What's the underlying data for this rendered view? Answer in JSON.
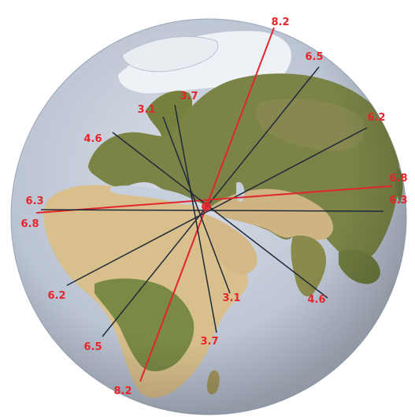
{
  "map": {
    "projection": "orthographic-globe",
    "center_region": "Middle East",
    "colors": {
      "ocean": "#c6cfdc",
      "land_green": "#6c7a3c",
      "land_desert": "#d8bf8c",
      "ice": "#eef1f6",
      "line_red": "#e0262b",
      "line_dark": "#1e2a3a",
      "label": "#e8232a"
    }
  },
  "segments": [
    {
      "id": "s1",
      "value": 8.2,
      "color": "red",
      "start_label": "8.2",
      "end_label": "8.2"
    },
    {
      "id": "s2",
      "value": 6.5,
      "color": "dark",
      "start_label": "6.5",
      "end_label": "6.5"
    },
    {
      "id": "s3",
      "value": 6.2,
      "color": "dark",
      "start_label": "6.2",
      "end_label": "6.2"
    },
    {
      "id": "s4",
      "value": 6.8,
      "color": "red",
      "start_label": "6.8",
      "end_label": "6.8"
    },
    {
      "id": "s5",
      "value": 6.3,
      "color": "dark",
      "start_label": "6.3",
      "end_label": "6.3"
    },
    {
      "id": "s6",
      "value": 4.6,
      "color": "dark",
      "start_label": "4.6",
      "end_label": "4.6"
    },
    {
      "id": "s7",
      "value": 3.7,
      "color": "dark",
      "start_label": "3.7",
      "end_label": "3.7"
    },
    {
      "id": "s8",
      "value": 3.1,
      "color": "dark",
      "start_label": "3.1",
      "end_label": "3.1"
    }
  ]
}
